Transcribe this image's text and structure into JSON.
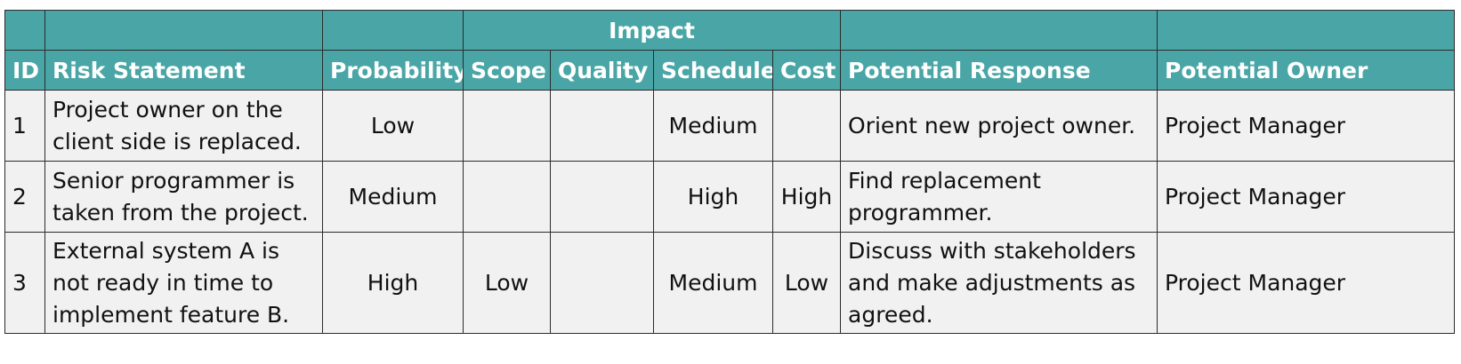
{
  "table": {
    "group_header": "Impact",
    "columns": {
      "id": "ID",
      "risk_statement": "Risk Statement",
      "probability": "Probability",
      "scope": "Scope",
      "quality": "Quality",
      "schedule": "Schedule",
      "cost": "Cost",
      "potential_response": "Potential Response",
      "potential_owner": "Potential Owner"
    },
    "rows": [
      {
        "id": "1",
        "risk_statement": "Project owner on the client side is replaced.",
        "probability": "Low",
        "scope": "",
        "quality": "",
        "schedule": "Medium",
        "cost": "",
        "potential_response": "Orient new project owner.",
        "potential_owner": "Project Manager"
      },
      {
        "id": "2",
        "risk_statement": "Senior programmer is taken from the project.",
        "probability": "Medium",
        "scope": "",
        "quality": "",
        "schedule": "High",
        "cost": "High",
        "potential_response": "Find replacement programmer.",
        "potential_owner": "Project Manager"
      },
      {
        "id": "3",
        "risk_statement": "External system A is not ready in time to implement feature B.",
        "probability": "High",
        "scope": "Low",
        "quality": "",
        "schedule": "Medium",
        "cost": "Low",
        "potential_response": "Discuss with stakeholders and make adjustments as agreed.",
        "potential_owner": "Project Manager"
      }
    ],
    "colors": {
      "header_bg": "#4aa6a6",
      "header_text": "#ffffff",
      "body_bg": "#f1f1f1",
      "border": "#2b2b2b"
    }
  }
}
